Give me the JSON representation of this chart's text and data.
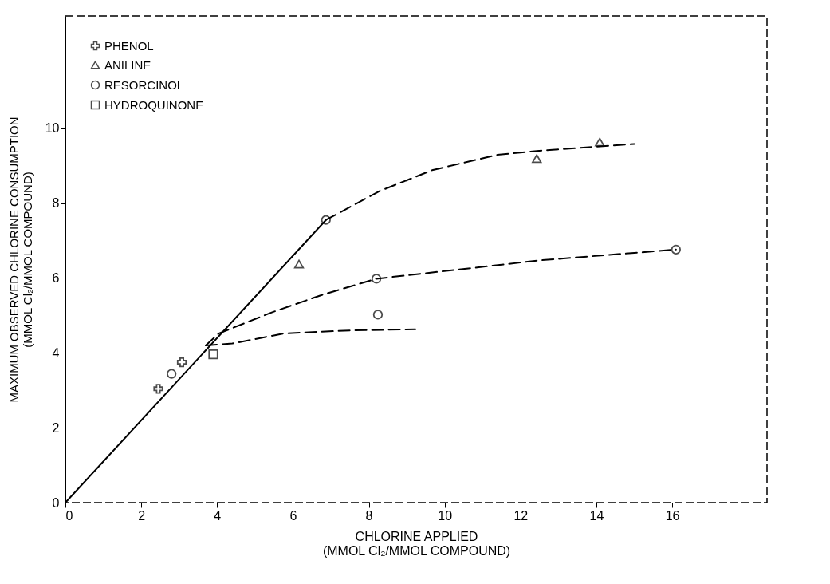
{
  "chart_data": {
    "type": "line",
    "xlabel": "CHLORINE APPLIED\n(MMOL Cl₂/MMOL COMPOUND)",
    "ylabel": "MAXIMUM OBSERVED CHLORINE CONSUMPTION\n(MMOL Cl₂/MMOL COMPOUND)",
    "xlim": [
      0,
      18.5
    ],
    "ylim": [
      0,
      13
    ],
    "xticks": [
      0,
      2,
      4,
      6,
      8,
      10,
      12,
      14,
      16
    ],
    "yticks": [
      0,
      2,
      4,
      6,
      8,
      10
    ],
    "grid": false,
    "legend": "top left",
    "line_style": "dashed",
    "series": [
      {
        "line_style": "solid",
        "color": "#000000",
        "x": [
          0,
          6.87
        ],
        "values": [
          0,
          7.55
        ]
      },
      {
        "color": "#000000",
        "x": [
          6.87,
          8.28,
          9.67,
          11.39,
          12.49,
          15.0
        ],
        "values": [
          7.55,
          8.32,
          8.88,
          9.29,
          9.4,
          9.58
        ]
      },
      {
        "color": "#000000",
        "x": [
          3.7,
          4.05,
          5.44,
          6.8,
          8.2,
          12.5,
          16.1
        ],
        "values": [
          4.2,
          4.52,
          5.08,
          5.56,
          5.98,
          6.47,
          6.76
        ]
      },
      {
        "color": "#000000",
        "x": [
          3.7,
          4.4,
          5.77,
          7.5,
          9.23
        ],
        "values": [
          4.2,
          4.25,
          4.52,
          4.6,
          4.63
        ]
      },
      {
        "type": "scatter",
        "name": "PHENOL",
        "marker": "cross",
        "color": "#000000",
        "x": [
          2.45,
          3.07
        ],
        "values": [
          3.04,
          3.75
        ]
      },
      {
        "type": "scatter",
        "name": "ANILINE",
        "marker": "triangle",
        "color": "#000000",
        "x": [
          6.16,
          12.43,
          14.09
        ],
        "values": [
          6.37,
          9.19,
          9.63
        ]
      },
      {
        "type": "scatter",
        "name": "RESORCINOL",
        "marker": "circle",
        "color": "#000000",
        "x": [
          2.8,
          6.87,
          8.2,
          8.24,
          16.1
        ],
        "values": [
          3.44,
          7.55,
          5.98,
          5.02,
          6.76
        ]
      },
      {
        "type": "scatter",
        "name": "HYDROQUINONE",
        "marker": "square",
        "color": "#000000",
        "x": [
          3.9
        ],
        "values": [
          3.96
        ]
      }
    ]
  }
}
